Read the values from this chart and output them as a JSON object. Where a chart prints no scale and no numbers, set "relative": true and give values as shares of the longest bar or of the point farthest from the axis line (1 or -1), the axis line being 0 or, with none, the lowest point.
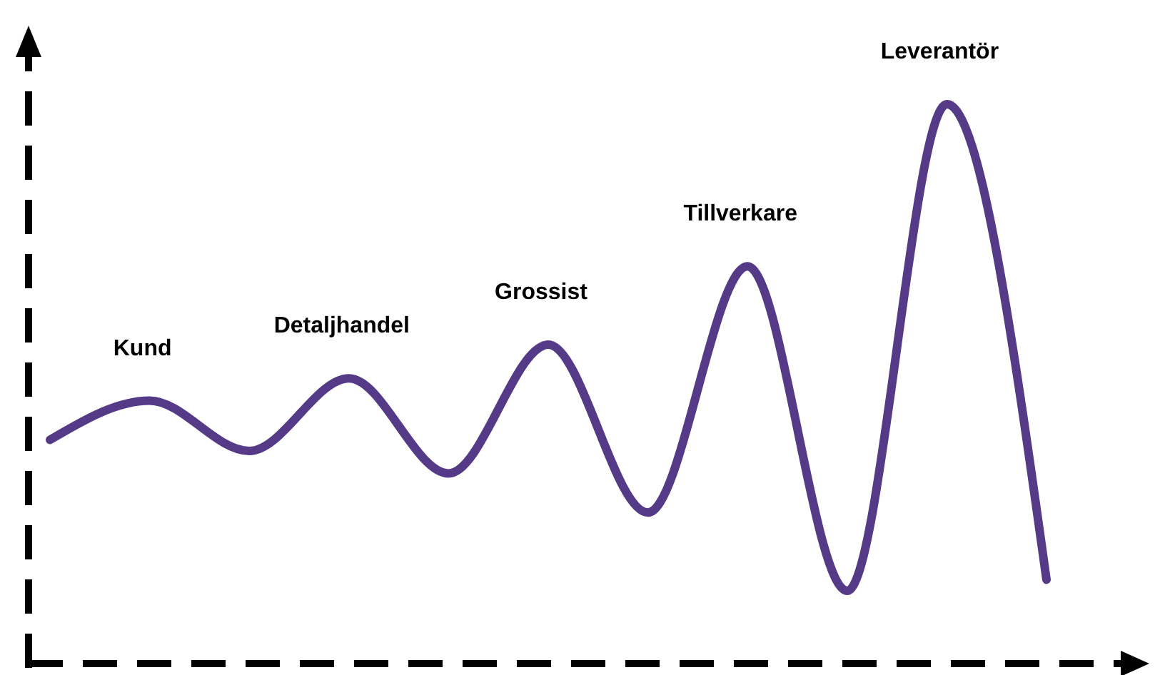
{
  "chart_data": {
    "type": "line",
    "relative": true,
    "categories": [
      null,
      null,
      null,
      null,
      null,
      null,
      null,
      null,
      null,
      null,
      null
    ],
    "series": [
      {
        "color": "#553a88",
        "values": [
          0.4,
          0.47,
          0.38,
          0.51,
          0.34,
          0.57,
          0.27,
          0.71,
          0.13,
          1,
          0.15
        ]
      }
    ],
    "annotations": [
      "Kund",
      "Detaljhandel",
      "Grossist",
      "Tillverkare",
      "Leverantör"
    ],
    "grid": false,
    "marker": "none",
    "line_style": "solid"
  }
}
